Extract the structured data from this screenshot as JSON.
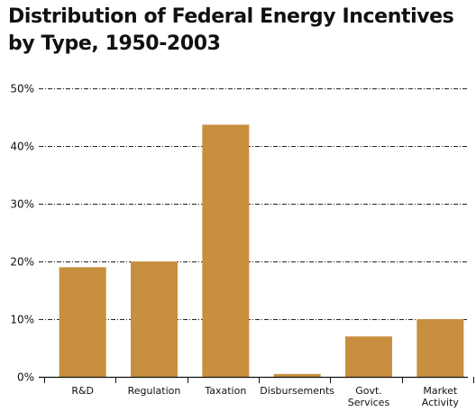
{
  "chart_data": {
    "type": "bar",
    "title_lines": [
      "Distribution of Federal Energy Incentives",
      "by Type, 1950-2003"
    ],
    "categories": [
      [
        "R&D"
      ],
      [
        "Regulation"
      ],
      [
        "Taxation"
      ],
      [
        "Disbursements"
      ],
      [
        "Govt.",
        "Services"
      ],
      [
        "Market",
        "Activity"
      ]
    ],
    "values": [
      19,
      20,
      43.7,
      0.5,
      7,
      10
    ],
    "ylim": [
      0,
      50
    ],
    "yticks": [
      0,
      10,
      20,
      30,
      40,
      50
    ],
    "ytick_labels": [
      "0%",
      "10%",
      "20%",
      "30%",
      "40%",
      "50%"
    ],
    "xlabel": "",
    "ylabel": "",
    "grid": true,
    "legend": "none",
    "bar_color": "#c8903e",
    "grid_color": "#222222"
  }
}
